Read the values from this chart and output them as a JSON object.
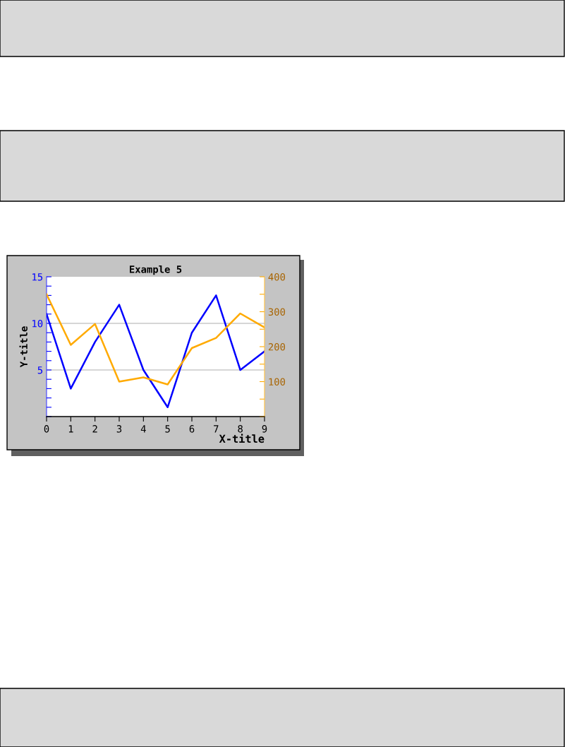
{
  "chart_data": {
    "type": "line",
    "title": "Example 5",
    "xlabel": "X-title",
    "ylabel": "Y-title",
    "x": [
      0,
      1,
      2,
      3,
      4,
      5,
      6,
      7,
      8,
      9
    ],
    "series": [
      {
        "color": "#0000ff",
        "values": [
          11,
          3,
          8,
          12,
          5,
          1,
          9,
          13,
          5,
          7
        ]
      },
      {
        "color": "#ffaa00",
        "axis": "y2",
        "values": [
          350,
          205,
          265,
          100,
          112,
          92,
          196,
          225,
          295,
          255
        ]
      }
    ],
    "xlim": [
      0,
      9
    ],
    "xticks": [
      0,
      1,
      2,
      3,
      4,
      5,
      6,
      7,
      8,
      9
    ],
    "ylim": [
      0,
      15
    ],
    "yticks": [
      {
        "value": 0,
        "label": null
      },
      {
        "value": 1,
        "label": null
      },
      {
        "value": 2,
        "label": null
      },
      {
        "value": 3,
        "label": null
      },
      {
        "value": 4,
        "label": null
      },
      5,
      {
        "value": 6,
        "label": null
      },
      {
        "value": 7,
        "label": null
      },
      {
        "value": 8,
        "label": null
      },
      {
        "value": 9,
        "label": null
      },
      10,
      {
        "value": 11,
        "label": null
      },
      {
        "value": 12,
        "label": null
      },
      {
        "value": 13,
        "label": null
      },
      {
        "value": 14,
        "label": null
      },
      15
    ],
    "y2lim": [
      0,
      400
    ],
    "y2ticks": [
      {
        "value": 0,
        "label": null
      },
      {
        "value": 50,
        "label": null
      },
      100,
      {
        "value": 150,
        "label": null
      },
      200,
      {
        "value": 250,
        "label": null
      },
      300,
      {
        "value": 350,
        "label": null
      },
      400
    ],
    "grid": "y",
    "line_style": "solid",
    "marker": "none"
  }
}
